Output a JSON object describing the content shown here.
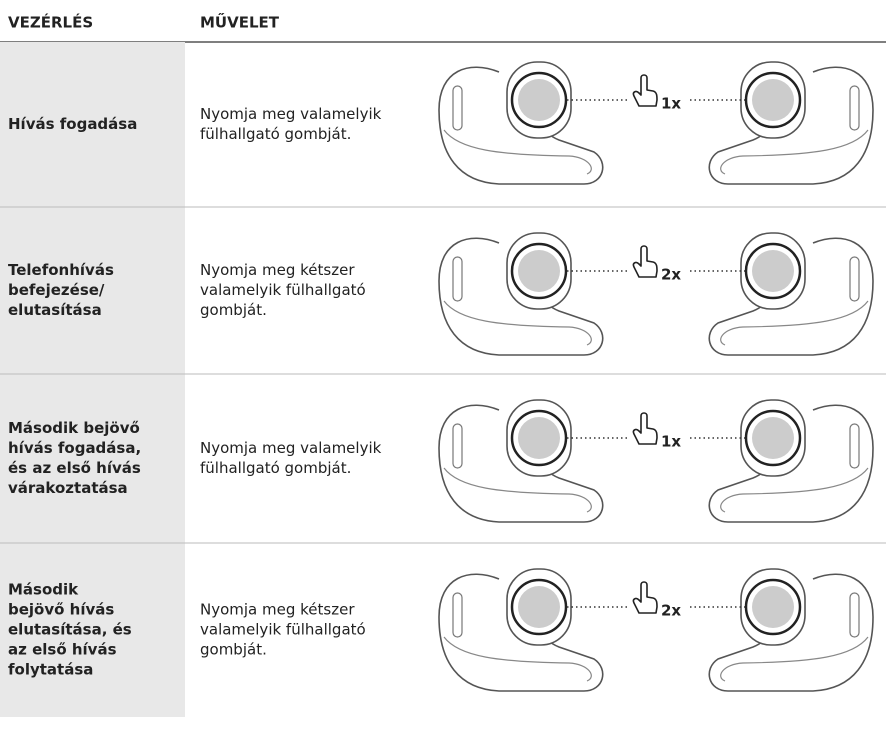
{
  "header": {
    "columns": [
      "VEZÉRLÉS",
      "MŰVELET"
    ]
  },
  "rows": [
    {
      "control": [
        "Hívás fogadása"
      ],
      "action": [
        "Nyomja meg valamelyik",
        "fülhallgató gombját."
      ],
      "presses": "1x"
    },
    {
      "control": [
        "Telefonhívás",
        "befejezése/",
        "elutasítása"
      ],
      "action": [
        "Nyomja meg kétszer",
        "valamelyik fülhallgató",
        "gombját."
      ],
      "presses": "2x"
    },
    {
      "control": [
        "Második bejövő",
        "hívás fogadása,",
        "és az első hívás",
        "várakoztatása"
      ],
      "action": [
        "Nyomja meg valamelyik",
        "fülhallgató gombját."
      ],
      "presses": "1x"
    },
    {
      "control": [
        "Második",
        "bejövő hívás",
        "elutasítása, és",
        "az első hívás",
        "folytatása"
      ],
      "action": [
        "Nyomja meg kétszer",
        "valamelyik fülhallgató",
        "gombját."
      ],
      "presses": "2x"
    }
  ]
}
